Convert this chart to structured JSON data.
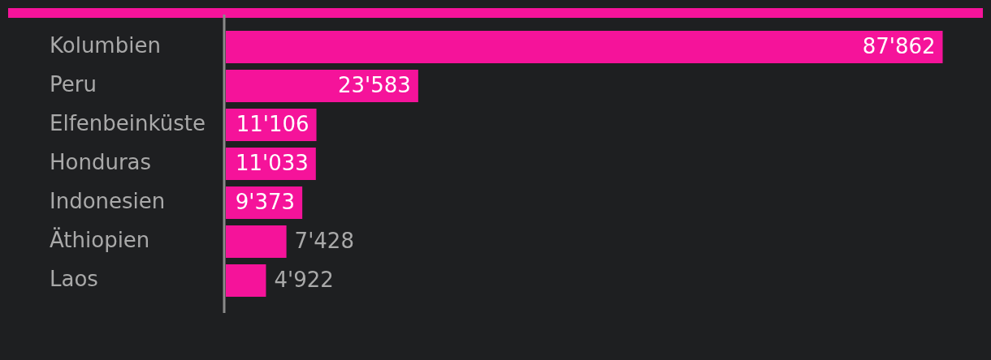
{
  "chart_data": {
    "type": "bar",
    "orientation": "horizontal",
    "categories": [
      "Kolumbien",
      "Peru",
      "Elfenbeinküste",
      "Honduras",
      "Indonesien",
      "Äthiopien",
      "Laos"
    ],
    "values": [
      87862,
      23583,
      11106,
      11033,
      9373,
      7428,
      4922
    ],
    "value_labels": [
      "87'862",
      "23'583",
      "11'106",
      "11'033",
      "9'373",
      "7'428",
      "4'922"
    ],
    "color": "#f5139a",
    "tick_labels": "y"
  }
}
